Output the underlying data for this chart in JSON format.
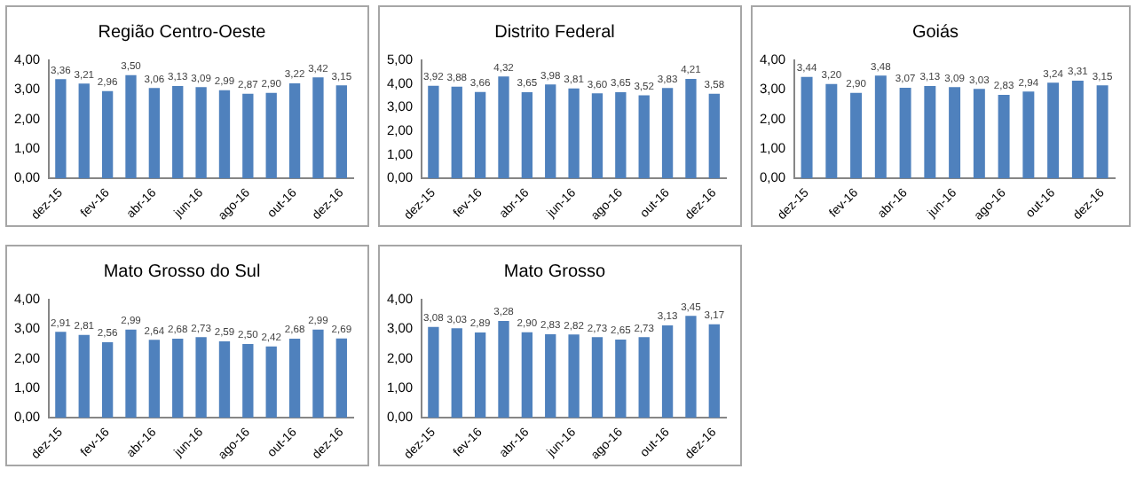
{
  "chart_data": [
    {
      "type": "bar",
      "title": "Região Centro-Oeste",
      "categories": [
        "dez-15",
        null,
        "fev-16",
        null,
        "abr-16",
        null,
        "jun-16",
        null,
        "ago-16",
        null,
        "out-16",
        null,
        "dez-16"
      ],
      "color": "#4f81bd",
      "values": [
        3.36,
        3.21,
        2.96,
        3.5,
        3.06,
        3.13,
        3.09,
        2.99,
        2.87,
        2.9,
        3.22,
        3.42,
        3.15
      ],
      "value_labels": [
        "3,36",
        "3,21",
        "2,96",
        "3,50",
        "3,06",
        "3,13",
        "3,09",
        "2,99",
        "2,87",
        "2,90",
        "3,22",
        "3,42",
        "3,15"
      ],
      "ylim": [
        0,
        4
      ],
      "yticks": [
        {
          "value": 0,
          "label": "0,00"
        },
        {
          "value": 1,
          "label": "1,00"
        },
        {
          "value": 2,
          "label": "2,00"
        },
        {
          "value": 3,
          "label": "3,00"
        },
        {
          "value": 4,
          "label": "4,00"
        }
      ]
    },
    {
      "type": "bar",
      "title": "Distrito Federal",
      "categories": [
        "dez-15",
        null,
        "fev-16",
        null,
        "abr-16",
        null,
        "jun-16",
        null,
        "ago-16",
        null,
        "out-16",
        null,
        "dez-16"
      ],
      "color": "#4f81bd",
      "values": [
        3.92,
        3.88,
        3.66,
        4.32,
        3.65,
        3.98,
        3.81,
        3.6,
        3.65,
        3.52,
        3.83,
        4.21,
        3.58
      ],
      "value_labels": [
        "3,92",
        "3,88",
        "3,66",
        "4,32",
        "3,65",
        "3,98",
        "3,81",
        "3,60",
        "3,65",
        "3,52",
        "3,83",
        "4,21",
        "3,58"
      ],
      "ylim": [
        0,
        5
      ],
      "yticks": [
        {
          "value": 0,
          "label": "0,00"
        },
        {
          "value": 1,
          "label": "1,00"
        },
        {
          "value": 2,
          "label": "2,00"
        },
        {
          "value": 3,
          "label": "3,00"
        },
        {
          "value": 4,
          "label": "4,00"
        },
        {
          "value": 5,
          "label": "5,00"
        }
      ]
    },
    {
      "type": "bar",
      "title": "Goiás",
      "categories": [
        "dez-15",
        null,
        "fev-16",
        null,
        "abr-16",
        null,
        "jun-16",
        null,
        "ago-16",
        null,
        "out-16",
        null,
        "dez-16"
      ],
      "color": "#4f81bd",
      "values": [
        3.44,
        3.2,
        2.9,
        3.48,
        3.07,
        3.13,
        3.09,
        3.03,
        2.83,
        2.94,
        3.24,
        3.31,
        3.15
      ],
      "value_labels": [
        "3,44",
        "3,20",
        "2,90",
        "3,48",
        "3,07",
        "3,13",
        "3,09",
        "3,03",
        "2,83",
        "2,94",
        "3,24",
        "3,31",
        "3,15"
      ],
      "ylim": [
        0,
        4
      ],
      "yticks": [
        {
          "value": 0,
          "label": "0,00"
        },
        {
          "value": 1,
          "label": "1,00"
        },
        {
          "value": 2,
          "label": "2,00"
        },
        {
          "value": 3,
          "label": "3,00"
        },
        {
          "value": 4,
          "label": "4,00"
        }
      ]
    },
    {
      "type": "bar",
      "title": "Mato Grosso do Sul",
      "categories": [
        "dez-15",
        null,
        "fev-16",
        null,
        "abr-16",
        null,
        "jun-16",
        null,
        "ago-16",
        null,
        "out-16",
        null,
        "dez-16"
      ],
      "color": "#4f81bd",
      "values": [
        2.91,
        2.81,
        2.56,
        2.99,
        2.64,
        2.68,
        2.73,
        2.59,
        2.5,
        2.42,
        2.68,
        2.99,
        2.69
      ],
      "value_labels": [
        "2,91",
        "2,81",
        "2,56",
        "2,99",
        "2,64",
        "2,68",
        "2,73",
        "2,59",
        "2,50",
        "2,42",
        "2,68",
        "2,99",
        "2,69"
      ],
      "ylim": [
        0,
        4
      ],
      "yticks": [
        {
          "value": 0,
          "label": "0,00"
        },
        {
          "value": 1,
          "label": "1,00"
        },
        {
          "value": 2,
          "label": "2,00"
        },
        {
          "value": 3,
          "label": "3,00"
        },
        {
          "value": 4,
          "label": "4,00"
        }
      ]
    },
    {
      "type": "bar",
      "title": "Mato Grosso",
      "categories": [
        "dez-15",
        null,
        "fev-16",
        null,
        "abr-16",
        null,
        "jun-16",
        null,
        "ago-16",
        null,
        "out-16",
        null,
        "dez-16"
      ],
      "color": "#4f81bd",
      "values": [
        3.08,
        3.03,
        2.89,
        3.28,
        2.9,
        2.83,
        2.82,
        2.73,
        2.65,
        2.73,
        3.13,
        3.45,
        3.17
      ],
      "value_labels": [
        "3,08",
        "3,03",
        "2,89",
        "3,28",
        "2,90",
        "2,83",
        "2,82",
        "2,73",
        "2,65",
        "2,73",
        "3,13",
        "3,45",
        "3,17"
      ],
      "ylim": [
        0,
        4
      ],
      "yticks": [
        {
          "value": 0,
          "label": "0,00"
        },
        {
          "value": 1,
          "label": "1,00"
        },
        {
          "value": 2,
          "label": "2,00"
        },
        {
          "value": 3,
          "label": "3,00"
        },
        {
          "value": 4,
          "label": "4,00"
        }
      ]
    }
  ]
}
